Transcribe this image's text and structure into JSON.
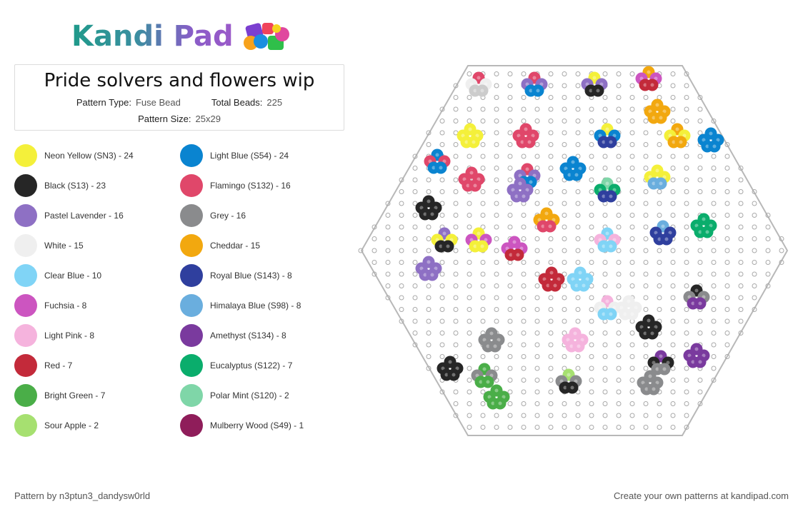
{
  "logo": {
    "text": "Kandi Pad"
  },
  "pattern": {
    "title": "Pride solvers and flowers wip",
    "type_label": "Pattern Type:",
    "type_value": "Fuse Bead",
    "total_label": "Total Beads:",
    "total_value": "225",
    "size_label": "Pattern Size:",
    "size_value": "25x29"
  },
  "legend": [
    {
      "label": "Neon Yellow (SN3) - 24",
      "color": "#f4f03a"
    },
    {
      "label": "Light Blue (S54) - 24",
      "color": "#0a84d0"
    },
    {
      "label": "Black (S13) - 23",
      "color": "#262626"
    },
    {
      "label": "Flamingo (S132) - 16",
      "color": "#e0476a"
    },
    {
      "label": "Pastel Lavender - 16",
      "color": "#8e70c4"
    },
    {
      "label": "Grey - 16",
      "color": "#8a8b8d"
    },
    {
      "label": "White - 15",
      "color": "#efefef"
    },
    {
      "label": "Cheddar - 15",
      "color": "#f2a80f"
    },
    {
      "label": "Clear Blue - 10",
      "color": "#80d4f6"
    },
    {
      "label": "Royal Blue (S143) - 8",
      "color": "#2f3f9e"
    },
    {
      "label": "Fuchsia - 8",
      "color": "#cc55c0"
    },
    {
      "label": "Himalaya Blue (S98) - 8",
      "color": "#6aaede"
    },
    {
      "label": "Light Pink - 8",
      "color": "#f5b3dd"
    },
    {
      "label": "Amethyst (S134) - 8",
      "color": "#7a3a9e"
    },
    {
      "label": "Red - 7",
      "color": "#c32a3a"
    },
    {
      "label": "Eucalyptus (S122) - 7",
      "color": "#0aad6c"
    },
    {
      "label": "Bright Green - 7",
      "color": "#4aae48"
    },
    {
      "label": "Polar Mint (S120) - 2",
      "color": "#7fd6a8"
    },
    {
      "label": "Sour Apple - 2",
      "color": "#a6e070"
    },
    {
      "label": "Mulberry Wood (S49) - 1",
      "color": "#8f1d5a"
    }
  ],
  "footer": {
    "credit": "Pattern by n3ptun3_dandysw0rld",
    "promo": "Create your own patterns at kandipad.com"
  }
}
